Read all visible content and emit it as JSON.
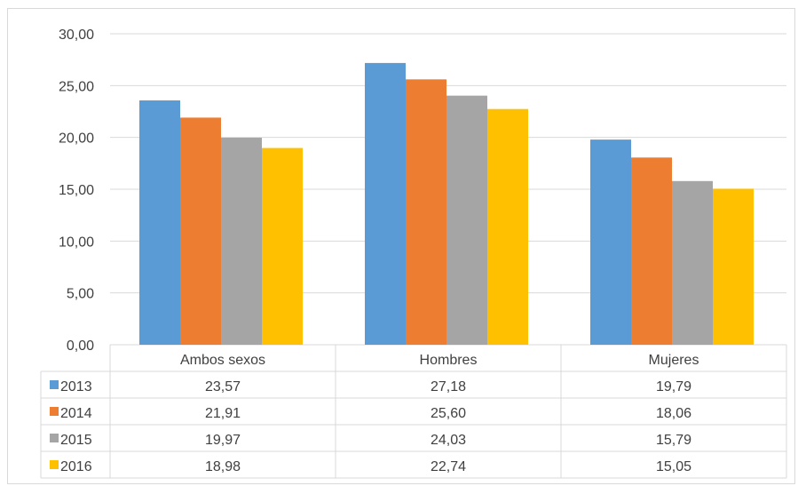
{
  "chart_data": {
    "type": "bar",
    "categories": [
      "Ambos sexos",
      "Hombres",
      "Mujeres"
    ],
    "series": [
      {
        "name": "2013",
        "color": "#5b9bd5",
        "values": [
          23.57,
          27.18,
          19.79
        ],
        "labels": [
          "23,57",
          "27,18",
          "19,79"
        ]
      },
      {
        "name": "2014",
        "color": "#ed7d31",
        "values": [
          21.91,
          25.6,
          18.06
        ],
        "labels": [
          "21,91",
          "25,60",
          "18,06"
        ]
      },
      {
        "name": "2015",
        "color": "#a5a5a5",
        "values": [
          19.97,
          24.03,
          15.79
        ],
        "labels": [
          "19,97",
          "24,03",
          "15,79"
        ]
      },
      {
        "name": "2016",
        "color": "#ffc000",
        "values": [
          18.98,
          22.74,
          15.05
        ],
        "labels": [
          "18,98",
          "22,74",
          "15,05"
        ]
      }
    ],
    "ylim": [
      0,
      30
    ],
    "yticks": [
      0,
      5,
      10,
      15,
      20,
      25,
      30
    ],
    "ytick_labels": [
      "0,00",
      "5,00",
      "10,00",
      "15,00",
      "20,00",
      "25,00",
      "30,00"
    ],
    "grid": true,
    "legend": "data-table"
  }
}
